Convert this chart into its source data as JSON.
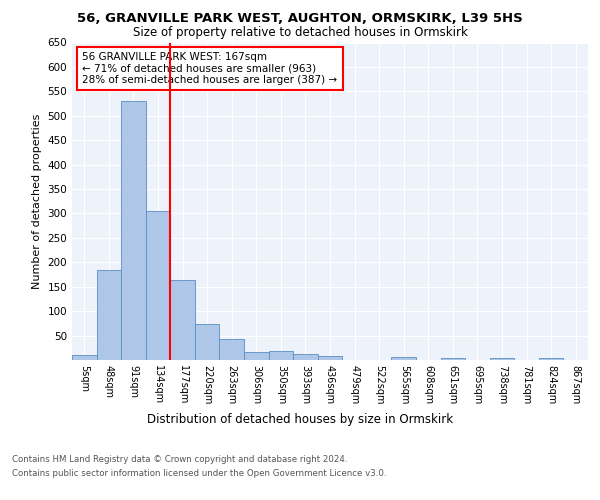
{
  "title1": "56, GRANVILLE PARK WEST, AUGHTON, ORMSKIRK, L39 5HS",
  "title2": "Size of property relative to detached houses in Ormskirk",
  "xlabel": "Distribution of detached houses by size in Ormskirk",
  "ylabel": "Number of detached properties",
  "bin_labels": [
    "5sqm",
    "48sqm",
    "91sqm",
    "134sqm",
    "177sqm",
    "220sqm",
    "263sqm",
    "306sqm",
    "350sqm",
    "393sqm",
    "436sqm",
    "479sqm",
    "522sqm",
    "565sqm",
    "608sqm",
    "651sqm",
    "695sqm",
    "738sqm",
    "781sqm",
    "824sqm",
    "867sqm"
  ],
  "bar_heights": [
    10,
    185,
    530,
    305,
    163,
    73,
    42,
    17,
    18,
    13,
    9,
    0,
    0,
    6,
    0,
    5,
    0,
    5,
    0,
    5,
    0
  ],
  "bar_color": "#aec6e8",
  "bar_edge_color": "#5a8fc2",
  "vline_index": 4,
  "annotation_lines": [
    "56 GRANVILLE PARK WEST: 167sqm",
    "← 71% of detached houses are smaller (963)",
    "28% of semi-detached houses are larger (387) →"
  ],
  "ylim": [
    0,
    650
  ],
  "yticks": [
    0,
    50,
    100,
    150,
    200,
    250,
    300,
    350,
    400,
    450,
    500,
    550,
    600,
    650
  ],
  "footer1": "Contains HM Land Registry data © Crown copyright and database right 2024.",
  "footer2": "Contains public sector information licensed under the Open Government Licence v3.0.",
  "plot_bg_color": "#edf2fb"
}
